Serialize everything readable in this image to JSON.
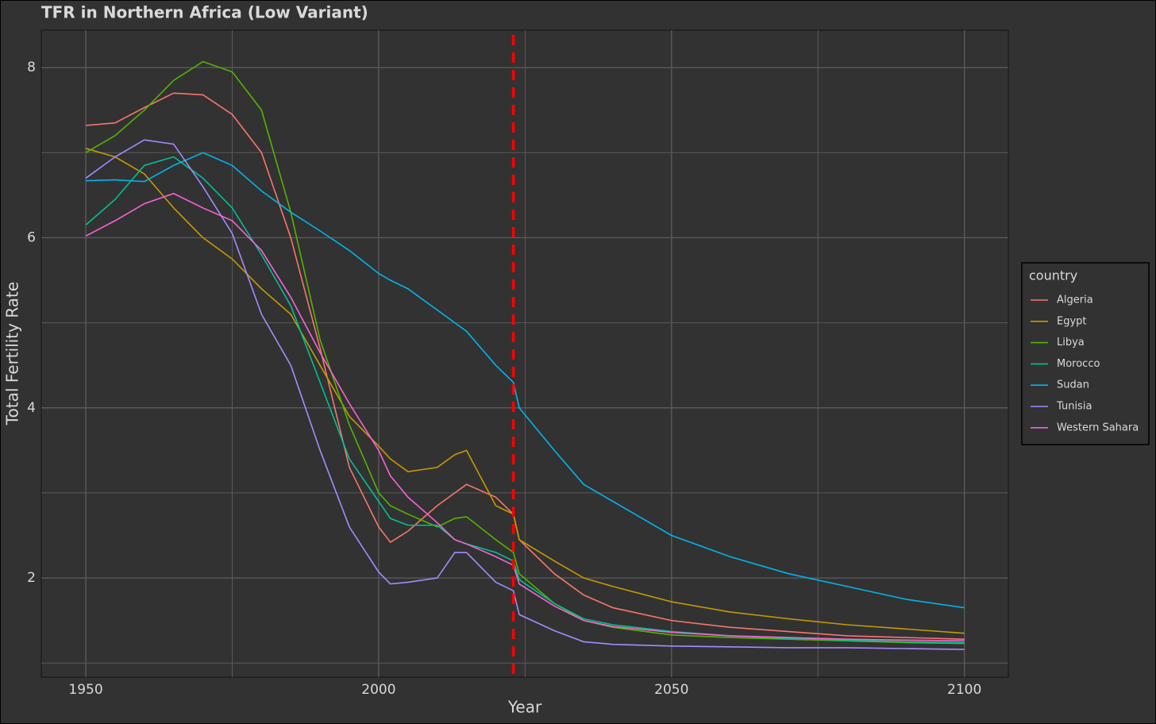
{
  "chart_data": {
    "type": "line",
    "title": "TFR in Northern Africa (Low Variant)",
    "x_label": "Year",
    "y_label": "Total Fertility Rate",
    "legend_title": "country",
    "legend": "right",
    "x": [
      1950,
      1955,
      1960,
      1965,
      1970,
      1975,
      1980,
      1985,
      1990,
      1995,
      2000,
      2002,
      2005,
      2010,
      2013,
      2015,
      2020,
      2023,
      2024,
      2030,
      2035,
      2040,
      2050,
      2060,
      2070,
      2080,
      2090,
      2100
    ],
    "series": [
      {
        "name": "Algeria",
        "color": "#F8766D",
        "values": [
          7.32,
          7.35,
          7.53,
          7.7,
          7.68,
          7.45,
          7.0,
          6.0,
          4.7,
          3.3,
          2.6,
          2.42,
          2.55,
          2.85,
          3.0,
          3.1,
          2.95,
          2.75,
          2.45,
          2.05,
          1.8,
          1.65,
          1.5,
          1.42,
          1.37,
          1.32,
          1.3,
          1.28
        ]
      },
      {
        "name": "Egypt",
        "color": "#C49A00",
        "values": [
          7.05,
          6.95,
          6.75,
          6.35,
          6.0,
          5.75,
          5.4,
          5.1,
          4.5,
          3.9,
          3.55,
          3.4,
          3.25,
          3.3,
          3.45,
          3.5,
          2.85,
          2.75,
          2.45,
          2.2,
          2.0,
          1.9,
          1.72,
          1.6,
          1.52,
          1.45,
          1.4,
          1.35
        ]
      },
      {
        "name": "Libya",
        "color": "#53B400",
        "values": [
          7.0,
          7.2,
          7.5,
          7.85,
          8.07,
          7.95,
          7.5,
          6.3,
          4.8,
          3.8,
          3.0,
          2.85,
          2.75,
          2.6,
          2.7,
          2.72,
          2.45,
          2.3,
          2.05,
          1.7,
          1.5,
          1.42,
          1.33,
          1.3,
          1.28,
          1.26,
          1.24,
          1.23
        ]
      },
      {
        "name": "Morocco",
        "color": "#00C094",
        "values": [
          6.15,
          6.45,
          6.85,
          6.95,
          6.7,
          6.35,
          5.8,
          5.2,
          4.3,
          3.4,
          2.9,
          2.7,
          2.62,
          2.62,
          2.45,
          2.4,
          2.3,
          2.2,
          1.98,
          1.7,
          1.52,
          1.45,
          1.37,
          1.32,
          1.29,
          1.27,
          1.25,
          1.24
        ]
      },
      {
        "name": "Sudan",
        "color": "#00B6EB",
        "values": [
          6.67,
          6.68,
          6.66,
          6.85,
          7.0,
          6.85,
          6.55,
          6.3,
          6.08,
          5.85,
          5.58,
          5.5,
          5.4,
          5.15,
          5.0,
          4.9,
          4.5,
          4.3,
          4.0,
          3.5,
          3.1,
          2.9,
          2.5,
          2.25,
          2.05,
          1.9,
          1.75,
          1.65
        ]
      },
      {
        "name": "Tunisia",
        "color": "#A58AFF",
        "values": [
          6.7,
          6.95,
          7.15,
          7.1,
          6.6,
          6.05,
          5.1,
          4.5,
          3.5,
          2.6,
          2.07,
          1.93,
          1.95,
          2.0,
          2.3,
          2.3,
          1.95,
          1.85,
          1.57,
          1.38,
          1.25,
          1.22,
          1.2,
          1.19,
          1.18,
          1.18,
          1.17,
          1.16
        ]
      },
      {
        "name": "Western Sahara",
        "color": "#FB61D7",
        "values": [
          6.02,
          6.2,
          6.4,
          6.52,
          6.35,
          6.2,
          5.85,
          5.3,
          4.65,
          4.05,
          3.5,
          3.2,
          2.95,
          2.65,
          2.45,
          2.4,
          2.25,
          2.15,
          1.93,
          1.67,
          1.5,
          1.43,
          1.36,
          1.32,
          1.3,
          1.28,
          1.27,
          1.26
        ]
      }
    ],
    "xlim": [
      1942.4,
      2107.5
    ],
    "ylim": [
      0.834,
      8.44
    ],
    "xticks": [
      1950,
      2000,
      2050,
      2100
    ],
    "yticks": [
      2,
      4,
      6,
      8
    ],
    "minor_xticks": [
      1975,
      2025,
      2075
    ],
    "minor_yticks": [
      1,
      3,
      5,
      7
    ],
    "grid": true,
    "vline": {
      "x": 2023,
      "color": "#FF0000"
    }
  }
}
